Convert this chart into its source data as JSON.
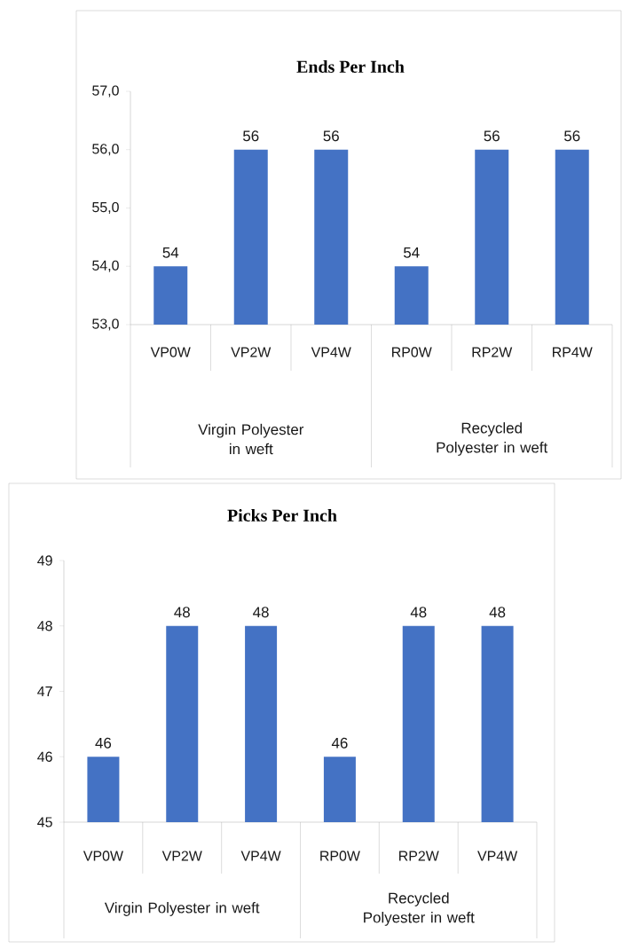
{
  "chart_data": [
    {
      "type": "bar",
      "title": "Ends Per Inch",
      "categories": [
        "VP0W",
        "VP2W",
        "VP4W",
        "RP0W",
        "RP2W",
        "RP4W"
      ],
      "values": [
        54,
        56,
        56,
        54,
        56,
        56
      ],
      "color": "#4472c4",
      "ylim": [
        53,
        57
      ],
      "yticks": [
        {
          "value": 53,
          "label": "53,0"
        },
        {
          "value": 54,
          "label": "54,0"
        },
        {
          "value": 55,
          "label": "55,0"
        },
        {
          "value": 56,
          "label": "56,0"
        },
        {
          "value": 57,
          "label": "57,0"
        }
      ],
      "data_labels": true,
      "annotations": [
        "Virgin Polyester in weft",
        "Recycled Polyester in weft"
      ]
    },
    {
      "type": "bar",
      "title": "Picks Per Inch",
      "categories": [
        "VP0W",
        "VP2W",
        "VP4W",
        "RP0W",
        "RP2W",
        "VP4W"
      ],
      "values": [
        46,
        48,
        48,
        46,
        48,
        48
      ],
      "color": "#4472c4",
      "ylim": [
        45,
        49
      ],
      "yticks": [
        45,
        46,
        47,
        48,
        49
      ],
      "data_labels": true,
      "annotations": [
        "Virgin Polyester in weft",
        "Recycled Polyester in weft"
      ]
    }
  ]
}
